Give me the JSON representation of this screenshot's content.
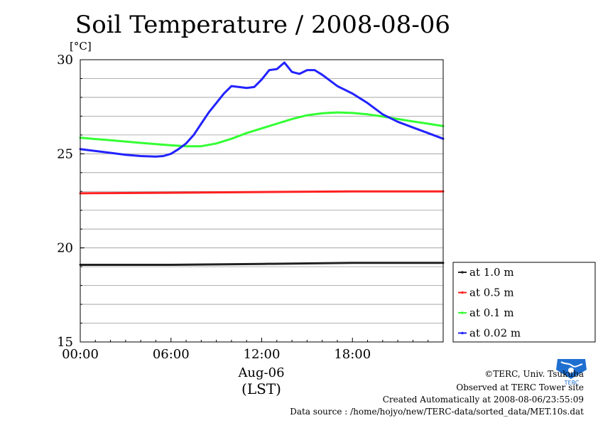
{
  "chart_data": {
    "type": "line",
    "title": "Soil Temperature / 2008-08-06",
    "ylabel": "[°C]",
    "ylim": [
      15,
      30
    ],
    "yticks": [
      "15",
      "20",
      "25",
      "30"
    ],
    "xlim": [
      0,
      24
    ],
    "xticks": [
      {
        "value": 0,
        "label": "00:00"
      },
      {
        "value": 6,
        "label": "06:00"
      },
      {
        "value": 12,
        "label": "12:00"
      },
      {
        "value": 18,
        "label": "18:00"
      }
    ],
    "xlabel_date": "Aug-06",
    "xlabel": "(LST)",
    "grid": true,
    "legend_position": "right-bottom-outside",
    "series": [
      {
        "name": "at 1.0 m",
        "color": "#222222",
        "x": [
          0,
          6,
          12,
          18,
          24
        ],
        "y": [
          19.1,
          19.1,
          19.15,
          19.2,
          19.2
        ]
      },
      {
        "name": "at 0.5 m",
        "color": "#ff2020",
        "x": [
          0,
          6,
          12,
          18,
          24
        ],
        "y": [
          22.9,
          22.93,
          22.97,
          23.0,
          23.0
        ]
      },
      {
        "name": "at 0.1 m",
        "color": "#33ff33",
        "x": [
          0,
          2,
          4,
          6,
          7,
          8,
          9,
          10,
          11,
          12,
          13,
          14,
          15,
          16,
          17,
          18,
          19,
          20,
          21,
          22,
          23,
          24
        ],
        "y": [
          25.85,
          25.72,
          25.58,
          25.45,
          25.4,
          25.4,
          25.55,
          25.8,
          26.1,
          26.35,
          26.6,
          26.85,
          27.05,
          27.15,
          27.2,
          27.17,
          27.1,
          26.98,
          26.85,
          26.72,
          26.6,
          26.47
        ]
      },
      {
        "name": "at 0.02 m",
        "color": "#2222ff",
        "x": [
          0,
          1,
          2,
          3,
          4,
          5,
          5.5,
          6,
          6.5,
          7,
          7.5,
          8,
          8.5,
          9,
          9.5,
          10,
          10.5,
          11,
          11.5,
          12,
          12.5,
          13,
          13.5,
          14,
          14.5,
          15,
          15.5,
          16,
          17,
          18,
          19,
          20,
          21,
          22,
          23,
          24
        ],
        "y": [
          25.25,
          25.15,
          25.05,
          24.95,
          24.88,
          24.85,
          24.88,
          25.0,
          25.25,
          25.55,
          26.0,
          26.6,
          27.2,
          27.7,
          28.2,
          28.6,
          28.55,
          28.5,
          28.55,
          28.95,
          29.45,
          29.5,
          29.85,
          29.35,
          29.25,
          29.45,
          29.45,
          29.2,
          28.6,
          28.2,
          27.7,
          27.1,
          26.7,
          26.4,
          26.1,
          25.8
        ]
      }
    ]
  },
  "credits": {
    "copyright": "©TERC, Univ. Tsukuba",
    "observed": "Observed at TERC Tower site",
    "created": "Created Automatically at 2008-08-06/23:55:09",
    "source": "Data source : /home/hojyo/new/TERC-data/sorted_data/MET.10s.dat",
    "logo_text": "TERC"
  }
}
